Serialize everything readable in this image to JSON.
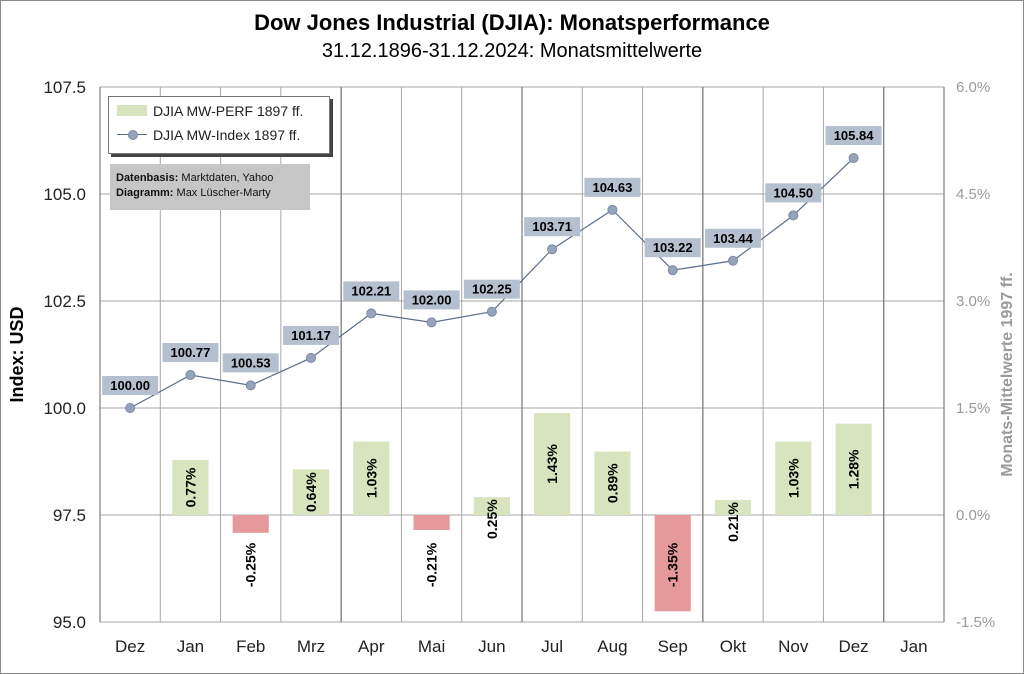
{
  "title": "Dow Jones Industrial (DJIA): Monatsperformance",
  "subtitle": "31.12.1896-31.12.2024: Monatsmittelwerte",
  "legend": {
    "bar_series": "DJIA MW-PERF 1897 ff.",
    "line_series": "DJIA MW-Index 1897 ff."
  },
  "source_box": {
    "data_label": "Datenbasis:",
    "data_value": "Marktdaten, Yahoo",
    "chart_label": "Diagramm:",
    "chart_value": "Max Lüscher-Marty"
  },
  "colors": {
    "bar_positive": "#d7e4bd",
    "bar_negative": "#e6999a",
    "line": "#5a6e8c",
    "marker": "#95a3bc",
    "label_bg": "#b4bfcf",
    "grid": "#a6a6a6"
  },
  "chart_data": {
    "type": "bar+line",
    "title": "Dow Jones Industrial (DJIA): Monatsperformance",
    "subtitle": "31.12.1896-31.12.2024: Monatsmittelwerte",
    "ylabel": "Index: USD",
    "y2label": "Monats-Mittelwerte 1997 ff.",
    "ylim": [
      95.0,
      107.5
    ],
    "y2lim": [
      -0.015,
      0.06
    ],
    "yticks": [
      "95.0",
      "97.5",
      "100.0",
      "102.5",
      "105.0",
      "107.5"
    ],
    "y2ticks": [
      "-1.5%",
      "0.0%",
      "1.5%",
      "3.0%",
      "4.5%",
      "6.0%"
    ],
    "categories": [
      "Dez",
      "Jan",
      "Feb",
      "Mrz",
      "Apr",
      "Mai",
      "Jun",
      "Jul",
      "Aug",
      "Sep",
      "Okt",
      "Nov",
      "Dez",
      "Jan"
    ],
    "grid": true,
    "legend_position": "top-left",
    "series": [
      {
        "name": "DJIA MW-PERF 1897 ff.",
        "type": "bar",
        "axis": "right",
        "values": [
          null,
          0.0077,
          -0.0025,
          0.0064,
          0.0103,
          -0.0021,
          0.0025,
          0.0143,
          0.0089,
          -0.0135,
          0.0021,
          0.0103,
          0.0128,
          null
        ],
        "labels": [
          null,
          "0.77%",
          "-0.25%",
          "0.64%",
          "1.03%",
          "-0.21%",
          "0.25%",
          "1.43%",
          "0.89%",
          "-1.35%",
          "0.21%",
          "1.03%",
          "1.28%",
          null
        ]
      },
      {
        "name": "DJIA MW-Index 1897 ff.",
        "type": "line",
        "axis": "left",
        "values": [
          100.0,
          100.77,
          100.53,
          101.17,
          102.21,
          102.0,
          102.25,
          103.71,
          104.63,
          103.22,
          103.44,
          104.5,
          105.84,
          null
        ],
        "labels": [
          "100.00",
          "100.77",
          "100.53",
          "101.17",
          "102.21",
          "102.00",
          "102.25",
          "103.71",
          "104.63",
          "103.22",
          "103.44",
          "104.50",
          "105.84",
          null
        ]
      }
    ]
  }
}
